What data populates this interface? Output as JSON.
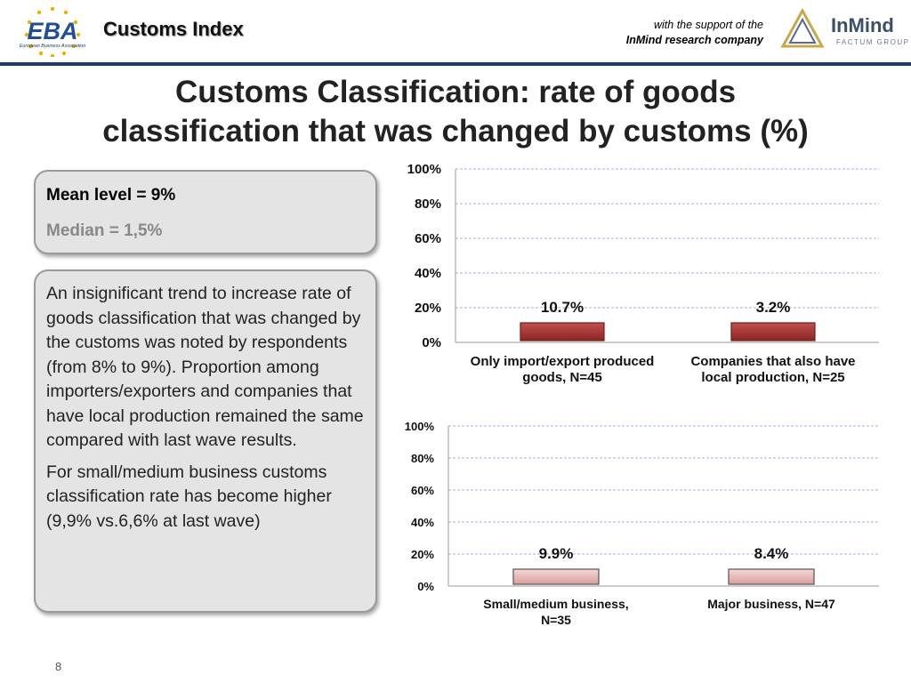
{
  "header": {
    "logo_text": "EBA",
    "logo_subtext": "European Business Association",
    "title": "Customs Index",
    "support_line": "with the support of the",
    "support_company": "InMind research company",
    "partner_logo_text": "InMind",
    "partner_logo_subtext": "FACTUM GROUP"
  },
  "slide": {
    "title_line1": "Customs Classification: rate of goods",
    "title_line2": "classification that was changed by customs (%)",
    "page_number": "8"
  },
  "summary": {
    "mean": "Mean level = 9%",
    "median": "Median = 1,5%"
  },
  "commentary": {
    "paragraph1": "An insignificant trend to increase rate of goods classification that was changed by the customs was noted by respondents (from 8% to 9%). Proportion among importers/exporters and companies that have local production remained the same compared with last wave results.",
    "paragraph2": "For small/medium business customs classification rate has become higher (9,9% vs.6,6% at last wave)"
  },
  "colors": {
    "bar_dark_red": "#a8302f",
    "bar_pink": "#e7b9b8",
    "grid": "#9fb5d8",
    "header_rule": "#1f3864"
  },
  "chart_data": [
    {
      "type": "bar",
      "categories": [
        [
          "Only import/export produced",
          "goods, N=45"
        ],
        [
          "Companies that also have",
          "local production, N=25"
        ]
      ],
      "values": [
        10.7,
        3.2
      ],
      "value_labels": [
        "10.7%",
        "3.2%"
      ],
      "yticks": [
        "0%",
        "20%",
        "40%",
        "60%",
        "80%",
        "100%"
      ],
      "ylim": [
        0,
        100
      ],
      "grid": true
    },
    {
      "type": "bar",
      "categories": [
        [
          "Small/medium business,",
          "N=35"
        ],
        [
          "Major business, N=47"
        ]
      ],
      "values": [
        9.9,
        8.4
      ],
      "value_labels": [
        "9.9%",
        "8.4%"
      ],
      "yticks": [
        "0%",
        "20%",
        "40%",
        "60%",
        "80%",
        "100%"
      ],
      "ylim": [
        0,
        100
      ],
      "grid": true
    }
  ]
}
